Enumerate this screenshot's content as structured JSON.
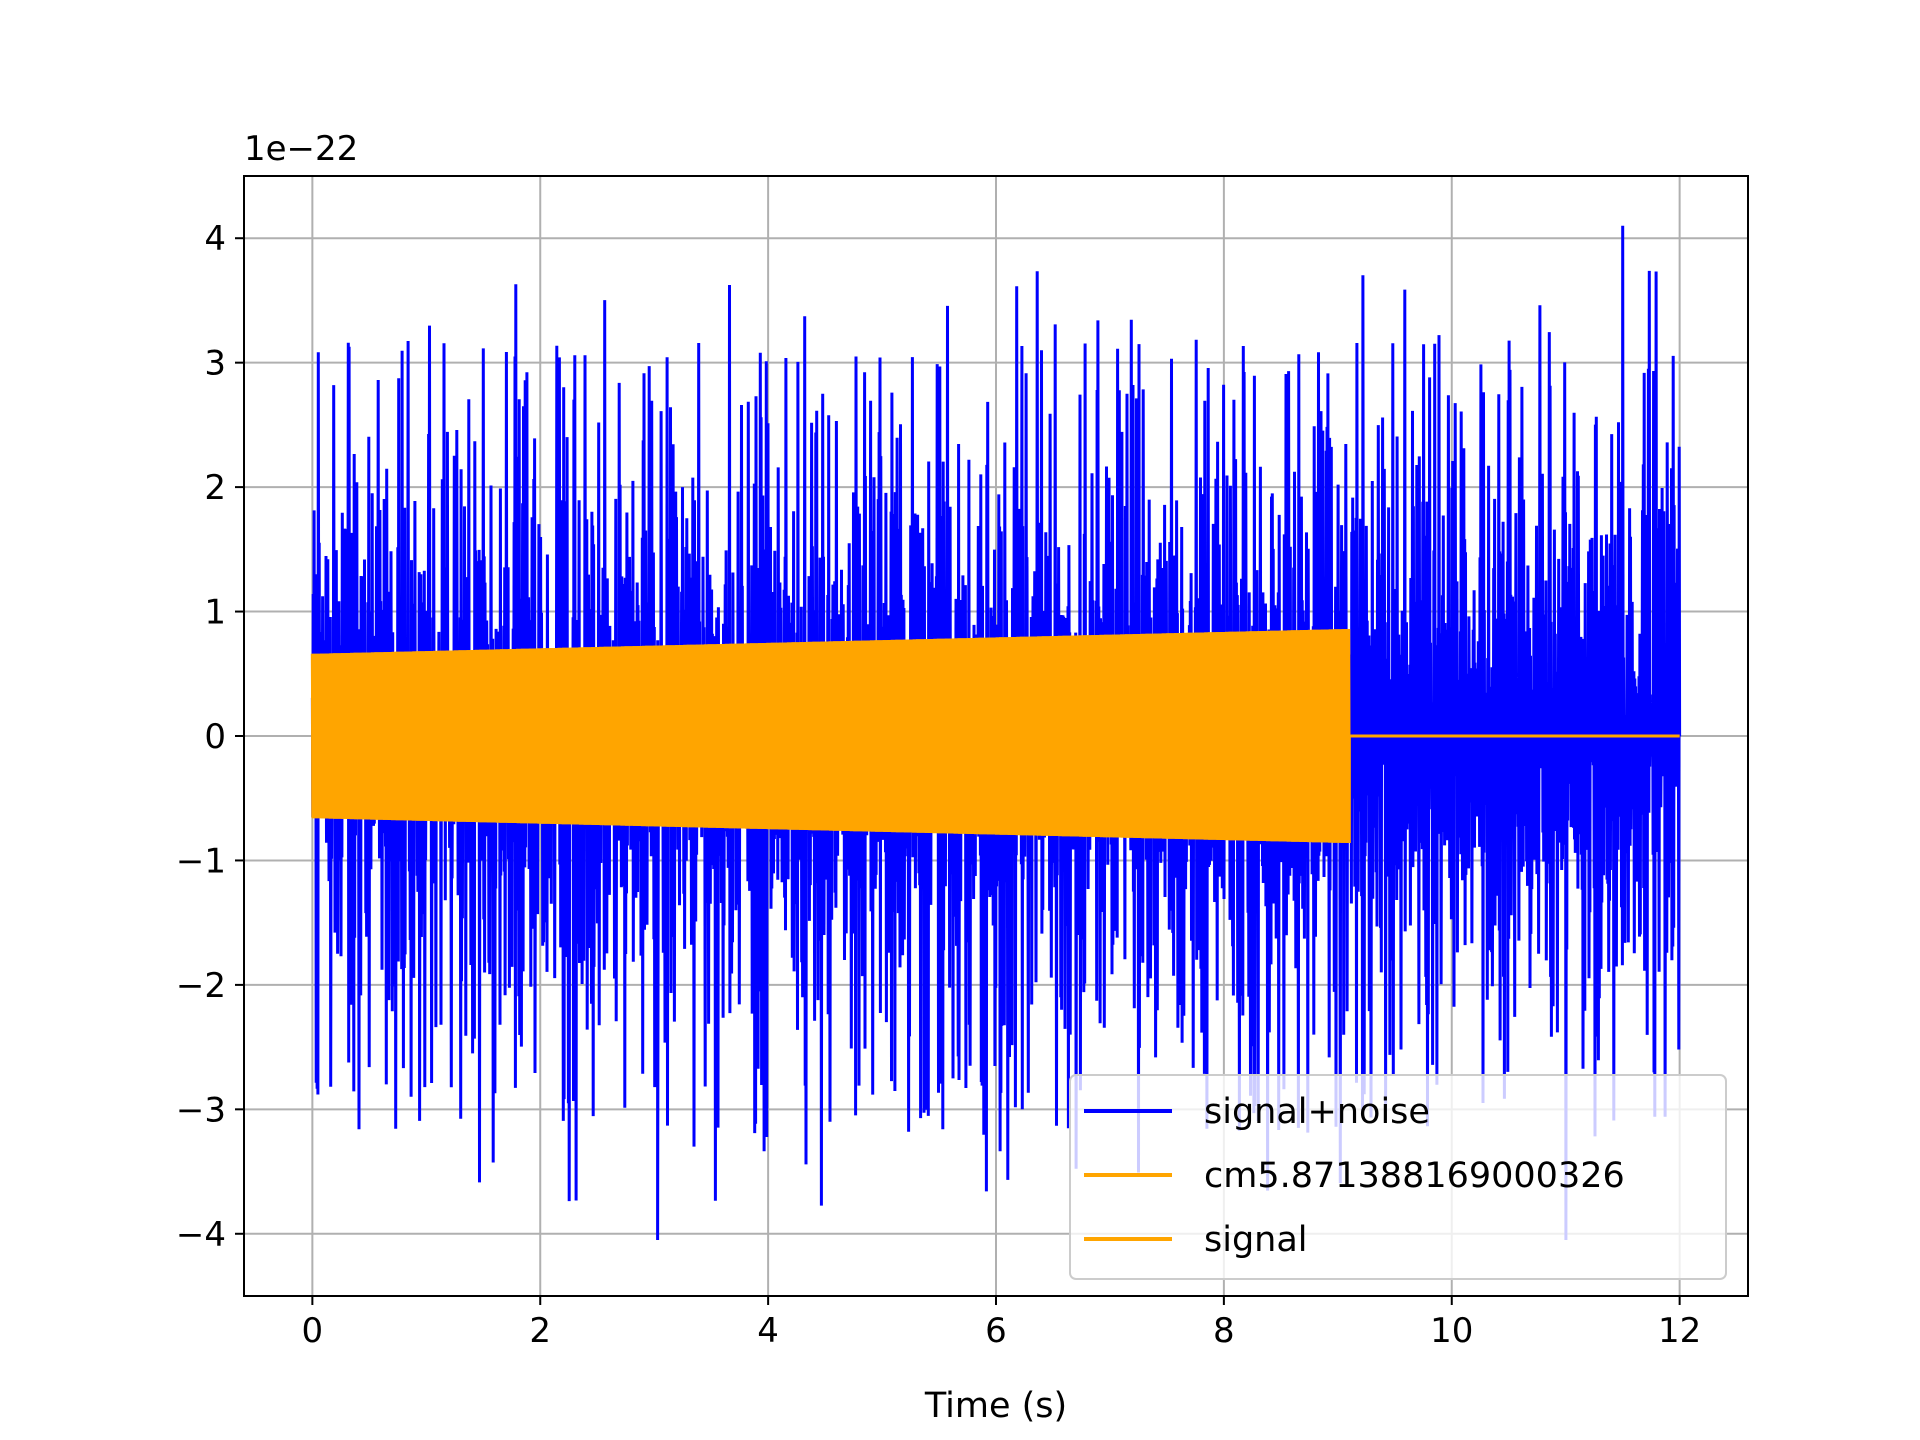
{
  "chart_data": {
    "type": "line",
    "title": "",
    "xlabel": "Time (s)",
    "ylabel": "",
    "y_offset_text": "1e−22",
    "y_scale_factor": 1e-22,
    "xlim": [
      -0.6,
      12.6
    ],
    "ylim": [
      -4.5,
      4.5
    ],
    "xticks": [
      0,
      2,
      4,
      6,
      8,
      10,
      12
    ],
    "xtick_labels": [
      "0",
      "2",
      "4",
      "6",
      "8",
      "10",
      "12"
    ],
    "yticks": [
      -4,
      -3,
      -2,
      -1,
      0,
      1,
      2,
      3,
      4
    ],
    "ytick_labels": [
      "−4",
      "−3",
      "−2",
      "−1",
      "0",
      "1",
      "2",
      "3",
      "4"
    ],
    "grid": true,
    "legend_position": "lower-right",
    "series": [
      {
        "name": "signal+noise",
        "color": "#0000ff",
        "kind": "noise",
        "t_start": 0,
        "t_end": 12,
        "typical_envelope": 1.5,
        "max_value": 4.1,
        "min_value": -4.05
      },
      {
        "name": "cm5.871388169000326",
        "color": "#ffa500",
        "kind": "chirp",
        "t_start": 0,
        "t_end": 9.1,
        "amplitude_start": 0.66,
        "amplitude_end": 0.86,
        "value_after_end": 0
      },
      {
        "name": "signal",
        "color": "#ffa500",
        "kind": "chirp",
        "t_start": 0,
        "t_end": 9.1,
        "amplitude_start": 0.66,
        "amplitude_end": 0.86,
        "value_after_end": 0
      }
    ]
  }
}
